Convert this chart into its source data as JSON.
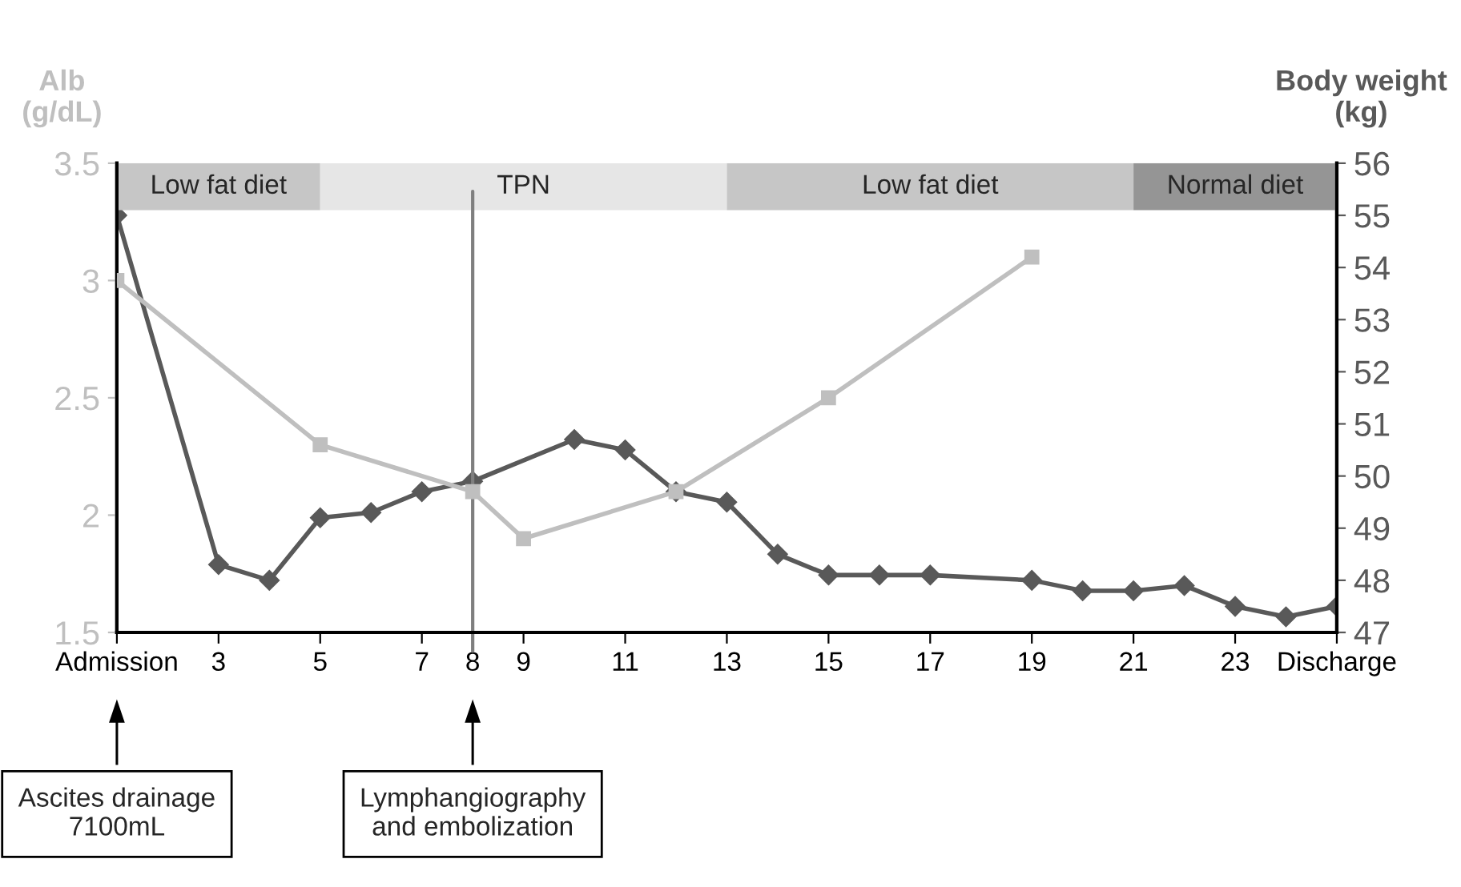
{
  "chart_data": {
    "type": "line",
    "ylabel": "Alb\n(g/dL)",
    "y2label": "Body weight\n(kg)",
    "xlim": [
      1,
      25
    ],
    "xticks": [
      {
        "value": 1,
        "label": "Admission"
      },
      3,
      5,
      7,
      8,
      9,
      11,
      13,
      15,
      17,
      19,
      21,
      23,
      {
        "value": 25,
        "label": "Discharge"
      }
    ],
    "ylim": [
      1.5,
      3.5
    ],
    "yticks": [
      1.5,
      2,
      2.5,
      3,
      3.5
    ],
    "y2lim": [
      47,
      56
    ],
    "y2ticks": [
      47,
      48,
      49,
      50,
      51,
      52,
      53,
      54,
      55,
      56
    ],
    "series": [
      {
        "color": "#bfbfbf",
        "marker": "square",
        "x": [
          1,
          5,
          8,
          9,
          12,
          15,
          19
        ],
        "values": [
          3.0,
          2.3,
          2.1,
          1.9,
          2.1,
          2.5,
          3.1
        ]
      },
      {
        "color": "#595959",
        "marker": "diamond",
        "axis": "y2",
        "x": [
          1,
          3,
          4,
          5,
          6,
          7,
          8,
          10,
          11,
          12,
          13,
          14,
          15,
          16,
          17,
          19,
          20,
          21,
          22,
          23,
          24,
          25
        ],
        "values": [
          55.0,
          48.3,
          48.0,
          49.2,
          49.3,
          49.7,
          49.9,
          50.7,
          50.5,
          49.7,
          49.5,
          48.5,
          48.1,
          48.1,
          48.1,
          48.0,
          47.8,
          47.8,
          47.9,
          47.5,
          47.3,
          47.5
        ]
      }
    ],
    "bands": [
      {
        "axis": "x",
        "from": 1,
        "to": 5,
        "label": "Low fat diet",
        "color": "#c6c6c6"
      },
      {
        "axis": "x",
        "from": 5,
        "to": 13,
        "label": "TPN",
        "color": "#e6e6e6"
      },
      {
        "axis": "x",
        "from": 13,
        "to": 21,
        "label": "Low fat diet",
        "color": "#c6c6c6"
      },
      {
        "axis": "x",
        "from": 21,
        "to": 25,
        "label": "Normal diet",
        "color": "#959595"
      }
    ],
    "ref_lines": [
      {
        "axis": "x",
        "value": 8,
        "color": "#7f7f7f"
      }
    ],
    "annotations": [
      "Ascites drainage\n7100mL",
      "Lymphangiography\nand embolization"
    ],
    "grid": false,
    "legend": false
  }
}
